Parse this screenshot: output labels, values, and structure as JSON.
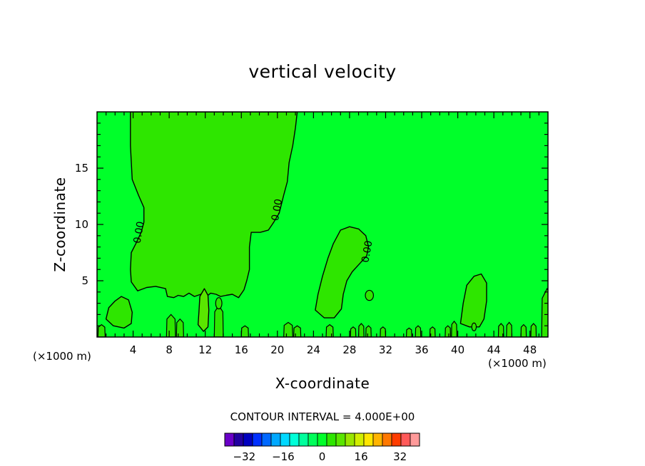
{
  "chart_data": {
    "type": "contour",
    "title": "vertical velocity",
    "xlabel": "X-coordinate",
    "ylabel": "Z-coordinate",
    "x_unit_label": "(×1000 m)",
    "xlim": [
      0,
      50
    ],
    "ylim": [
      0,
      20
    ],
    "x_ticks": [
      4,
      8,
      12,
      16,
      20,
      24,
      28,
      32,
      36,
      40,
      44,
      48
    ],
    "y_ticks": [
      5,
      10,
      15
    ],
    "contour_interval_text": "CONTOUR INTERVAL = 4.000E+00",
    "contour_interval": 4,
    "contour_labels": [
      {
        "text": "0.00",
        "x": 4.6,
        "z": 9.3
      },
      {
        "text": "0.00",
        "x": 19.9,
        "z": 11.3
      },
      {
        "text": "0.00",
        "x": 29.9,
        "z": 7.6
      }
    ],
    "background_color": "#00ff2a",
    "regions": [
      {
        "name": "weak updraft column",
        "value_range": "0 to 4",
        "color": "#2ee600",
        "boundary": [
          [
            3.7,
            20
          ],
          [
            3.7,
            17
          ],
          [
            3.9,
            14
          ],
          [
            4.6,
            12.6
          ],
          [
            5.2,
            11.5
          ],
          [
            5.2,
            10.2
          ],
          [
            4.9,
            9.3
          ],
          [
            4.3,
            8.3
          ],
          [
            3.8,
            7.5
          ],
          [
            3.7,
            6
          ],
          [
            3.8,
            4.9
          ],
          [
            4.5,
            4.1
          ],
          [
            5.5,
            4.4
          ],
          [
            6.5,
            4.5
          ],
          [
            7.6,
            4.3
          ],
          [
            7.8,
            3.6
          ],
          [
            8.5,
            3.5
          ],
          [
            9,
            3.7
          ],
          [
            9.6,
            3.6
          ],
          [
            10.2,
            3.9
          ],
          [
            10.8,
            3.6
          ],
          [
            11.5,
            3.8
          ],
          [
            11.8,
            3.4
          ],
          [
            12.6,
            3.9
          ],
          [
            13.2,
            3.8
          ],
          [
            13.7,
            3.6
          ],
          [
            14.3,
            3.7
          ],
          [
            15,
            3.8
          ],
          [
            15.7,
            3.5
          ],
          [
            16.3,
            4.2
          ],
          [
            16.6,
            5
          ],
          [
            16.9,
            6
          ],
          [
            16.9,
            8
          ],
          [
            17.1,
            9.3
          ],
          [
            18.1,
            9.3
          ],
          [
            19,
            9.5
          ],
          [
            19.6,
            10.2
          ],
          [
            20.2,
            11
          ],
          [
            20.7,
            12.6
          ],
          [
            21.1,
            13.8
          ],
          [
            21.3,
            15.5
          ],
          [
            21.7,
            17
          ],
          [
            22,
            18.6
          ],
          [
            22.2,
            20
          ]
        ]
      },
      {
        "name": "updraft near x=27",
        "value_range": "0 to 4",
        "color": "#2ee600",
        "boundary": [
          [
            24.2,
            2.4
          ],
          [
            24.5,
            3.8
          ],
          [
            25,
            5.4
          ],
          [
            25.6,
            7
          ],
          [
            26.2,
            8.3
          ],
          [
            27,
            9.5
          ],
          [
            28,
            9.8
          ],
          [
            29,
            9.6
          ],
          [
            29.8,
            9
          ],
          [
            30.1,
            8
          ],
          [
            29.9,
            7.2
          ],
          [
            29.1,
            6.5
          ],
          [
            28.3,
            5.8
          ],
          [
            27.7,
            5
          ],
          [
            27.3,
            3.8
          ],
          [
            27.1,
            2.5
          ],
          [
            26.3,
            1.7
          ],
          [
            25.2,
            1.7
          ]
        ]
      },
      {
        "name": "updraft near x=42",
        "value_range": "0 to 4",
        "color": "#2ee600",
        "boundary": [
          [
            40.3,
            1.2
          ],
          [
            40.6,
            3
          ],
          [
            41,
            4.6
          ],
          [
            41.8,
            5.4
          ],
          [
            42.6,
            5.6
          ],
          [
            43.2,
            4.8
          ],
          [
            43.2,
            3.2
          ],
          [
            42.9,
            1.6
          ],
          [
            42.4,
            0.9
          ],
          [
            41.3,
            0.9
          ]
        ]
      },
      {
        "name": "near-surface cell x=3",
        "value_range": "0 to 4",
        "color": "#2ee600",
        "boundary": [
          [
            1,
            1.6
          ],
          [
            1.3,
            2.6
          ],
          [
            2,
            3.2
          ],
          [
            2.7,
            3.6
          ],
          [
            3.5,
            3.3
          ],
          [
            3.9,
            2.2
          ],
          [
            3.8,
            1.2
          ],
          [
            3,
            0.8
          ],
          [
            1.8,
            1
          ]
        ]
      },
      {
        "name": "strong updraft near x=12",
        "value_range": "4 to 8",
        "color": "#5ae600",
        "boundary": [
          [
            11.2,
            1.1
          ],
          [
            11.3,
            2.2
          ],
          [
            11.4,
            3.6
          ],
          [
            11.9,
            4.3
          ],
          [
            12.3,
            3.7
          ],
          [
            12.4,
            2.4
          ],
          [
            12.3,
            0.9
          ],
          [
            11.8,
            0.5
          ]
        ]
      }
    ],
    "colorbar": {
      "ticks": [
        "−32",
        "−16",
        "0",
        "16",
        "32"
      ],
      "tick_values": [
        -32,
        -16,
        0,
        16,
        32
      ],
      "range": [
        -40,
        40
      ],
      "colors": [
        "#6a00c8",
        "#2200a0",
        "#0000c0",
        "#0030ff",
        "#0068ff",
        "#00a8ff",
        "#00d8ff",
        "#00ffd8",
        "#00ff9c",
        "#00ff5a",
        "#00ff2a",
        "#2ee600",
        "#5ae600",
        "#9ae600",
        "#d2ee00",
        "#ffe600",
        "#ffb400",
        "#ff7800",
        "#ff3c00",
        "#ff5a5a",
        "#ff9a9a"
      ]
    }
  }
}
